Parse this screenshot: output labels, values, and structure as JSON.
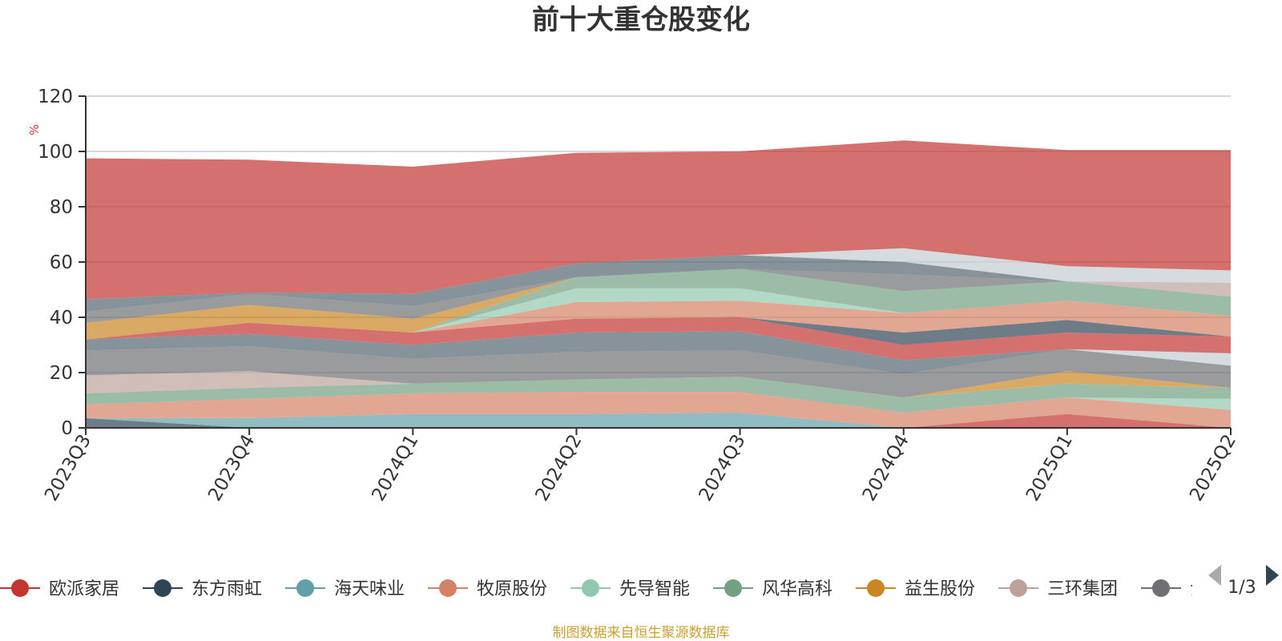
{
  "chart_data": {
    "type": "area",
    "stacked": true,
    "title": "前十大重仓股变化",
    "ylabel": "%",
    "ylim": [
      0,
      120
    ],
    "yticks": [
      0,
      20,
      40,
      60,
      80,
      100,
      120
    ],
    "grid": true,
    "categories": [
      "2023Q3",
      "2023Q4",
      "2024Q1",
      "2024Q2",
      "2024Q3",
      "2024Q4",
      "2025Q1",
      "2025Q2"
    ],
    "series": [
      {
        "name": "欧派家居",
        "color": "#c23531",
        "values": [
          0,
          0,
          0,
          0,
          0,
          0,
          5,
          0
        ]
      },
      {
        "name": "东方雨虹",
        "color": "#2f4554",
        "values": [
          3.5,
          0,
          0,
          0,
          0,
          0,
          0,
          0
        ]
      },
      {
        "name": "海天味业",
        "color": "#61a0a8",
        "values": [
          0,
          3.5,
          5,
          5,
          5.5,
          0,
          0,
          0
        ]
      },
      {
        "name": "牧原股份",
        "color": "#d48265",
        "values": [
          5,
          7,
          7.5,
          8,
          7.5,
          5.5,
          6,
          6.5
        ]
      },
      {
        "name": "先导智能",
        "color": "#91c7ae",
        "values": [
          0,
          0,
          0,
          0,
          0,
          0,
          0,
          4
        ]
      },
      {
        "name": "风华高科",
        "color": "#749f83",
        "values": [
          4,
          4,
          3.5,
          4.5,
          5.5,
          5.5,
          5,
          4
        ]
      },
      {
        "name": "益生股份",
        "color": "#ca8622",
        "values": [
          0,
          0,
          0,
          0,
          0,
          0,
          4.5,
          0
        ]
      },
      {
        "name": "三环集团",
        "color": "#bda29a",
        "values": [
          6.5,
          6,
          0,
          0,
          0,
          0,
          0,
          0
        ]
      },
      {
        "name": "",
        "color": "#6e7074",
        "values": [
          9,
          9,
          9,
          10,
          9.5,
          8.5,
          8,
          8
        ]
      },
      {
        "name": "",
        "color": "#546570",
        "values": [
          4,
          4.5,
          5,
          7,
          7,
          5,
          0,
          0
        ]
      },
      {
        "name": "",
        "color": "#c4ccd3",
        "values": [
          0,
          0,
          0,
          0,
          0,
          0,
          0,
          4.5
        ]
      },
      {
        "name": "",
        "color": "#c23531",
        "values": [
          0,
          4,
          4.5,
          5,
          5,
          5.5,
          6,
          6
        ]
      },
      {
        "name": "",
        "color": "#2f4554",
        "values": [
          0,
          0,
          0,
          0,
          0,
          4.5,
          4.5,
          0
        ]
      },
      {
        "name": "",
        "color": "#d48265",
        "values": [
          0,
          0,
          0,
          6,
          6,
          7,
          7,
          7.5
        ]
      },
      {
        "name": "",
        "color": "#91c7ae",
        "values": [
          0,
          0,
          0,
          5,
          4.5,
          0,
          0,
          0
        ]
      },
      {
        "name": "",
        "color": "#749f83",
        "values": [
          0,
          0,
          0,
          4,
          7,
          8,
          7,
          7
        ]
      },
      {
        "name": "",
        "color": "#ca8622",
        "values": [
          6,
          6.5,
          5,
          0,
          0,
          0,
          0,
          0
        ]
      },
      {
        "name": "",
        "color": "#bda29a",
        "values": [
          0,
          0,
          0,
          0,
          0,
          0,
          0,
          5
        ]
      },
      {
        "name": "",
        "color": "#6e7074",
        "values": [
          4,
          4,
          4.5,
          0,
          0,
          6,
          0,
          0
        ]
      },
      {
        "name": "",
        "color": "#546570",
        "values": [
          4.5,
          0.5,
          4.5,
          5,
          5,
          4.5,
          0,
          0
        ]
      },
      {
        "name": "",
        "color": "#c4ccd3",
        "values": [
          0,
          0,
          0,
          0,
          0,
          5,
          5.5,
          4.5
        ]
      },
      {
        "name": "",
        "color": "#c23531",
        "values": [
          51,
          48,
          46,
          40,
          37.5,
          39,
          42,
          43.5
        ]
      }
    ]
  },
  "legend": {
    "items": [
      {
        "name": "欧派家居",
        "color": "#c23531"
      },
      {
        "name": "东方雨虹",
        "color": "#2f4554"
      },
      {
        "name": "海天味业",
        "color": "#61a0a8"
      },
      {
        "name": "牧原股份",
        "color": "#d48265"
      },
      {
        "name": "先导智能",
        "color": "#91c7ae"
      },
      {
        "name": "风华高科",
        "color": "#749f83"
      },
      {
        "name": "益生股份",
        "color": "#ca8622"
      },
      {
        "name": "三环集团",
        "color": "#bda29a"
      },
      {
        "name": "氵",
        "color": "#6e7074"
      }
    ],
    "page_text": "1/3",
    "prev_icon": "triangle-left-icon",
    "next_icon": "triangle-right-icon",
    "active_color": "#2f4554",
    "inactive_color": "#aaaaaa"
  },
  "footer": {
    "source": "制图数据来自恒生聚源数据库"
  }
}
